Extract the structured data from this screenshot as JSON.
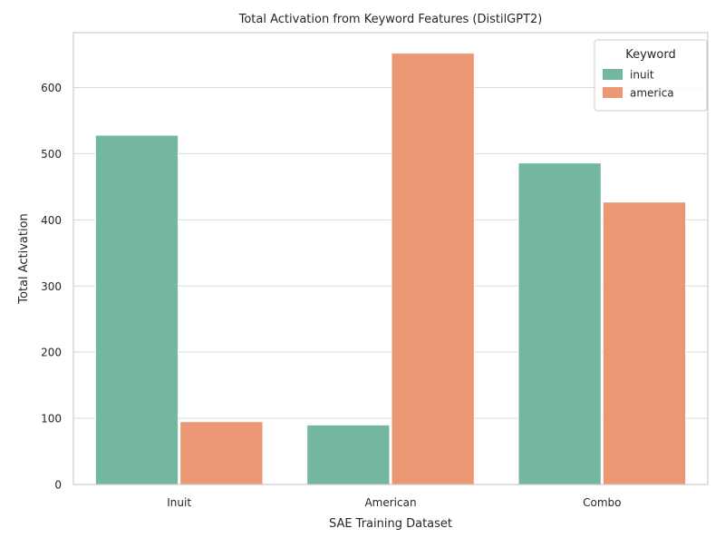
{
  "chart_data": {
    "type": "bar",
    "title": "Total Activation from Keyword Features (DistilGPT2)",
    "xlabel": "SAE Training Dataset",
    "ylabel": "Total Activation",
    "categories": [
      "Inuit",
      "American",
      "Combo"
    ],
    "series": [
      {
        "name": "inuit",
        "color": "#74b7a0",
        "values": [
          528,
          90,
          486
        ]
      },
      {
        "name": "america",
        "color": "#eb9774",
        "values": [
          95,
          652,
          427
        ]
      }
    ],
    "ylim": [
      0,
      683
    ],
    "yticks": [
      0,
      100,
      200,
      300,
      400,
      500,
      600
    ],
    "grid": "horizontal",
    "legend": {
      "title": "Keyword",
      "placement": "top-right"
    }
  }
}
